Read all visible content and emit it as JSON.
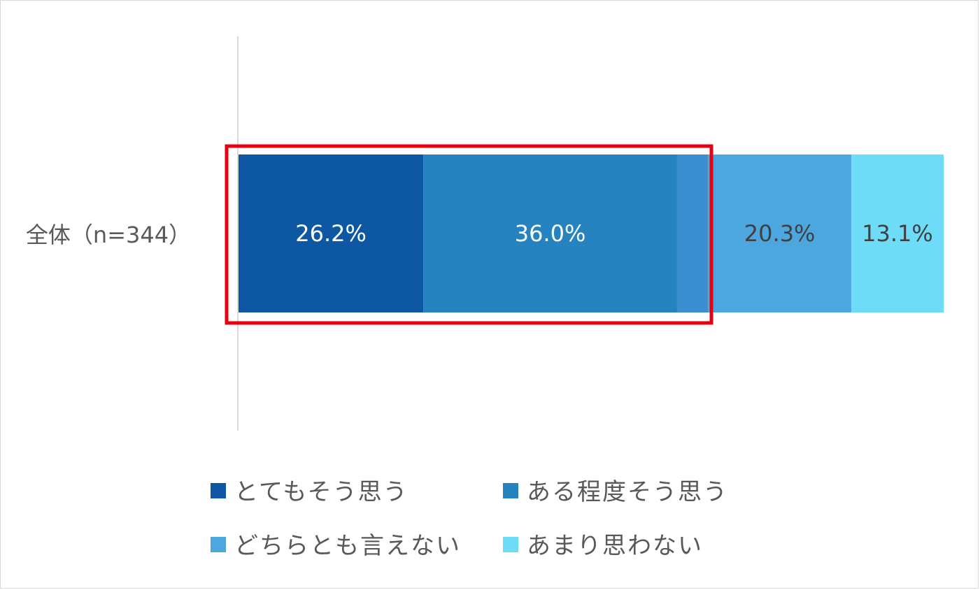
{
  "chart_data": {
    "type": "bar",
    "orientation": "horizontal",
    "stacked": true,
    "categories": [
      "全体（n=344）"
    ],
    "series": [
      {
        "name": "とてもそう思う",
        "values": [
          26.2
        ],
        "label": "26.2%",
        "color": "#0e57a3",
        "label_color": "#ffffff"
      },
      {
        "name": "ある程度そう思う",
        "values": [
          36.0
        ],
        "label": "36.0%",
        "color": "#2783c0",
        "label_color": "#ffffff"
      },
      {
        "name": "どちらとも言えない",
        "values": [
          20.3
        ],
        "label": "20.3%",
        "color": "#4da6dd",
        "label_color": "#404040"
      },
      {
        "name": "あまり思わない",
        "values": [
          13.1
        ],
        "label": "13.1%",
        "color": "#6edbf7",
        "label_color": "#404040"
      },
      {
        "name": "",
        "values": [
          4.4
        ],
        "label": "",
        "color": "#3b8fd0",
        "label_color": "#404040"
      }
    ],
    "xlim": [
      0,
      100
    ],
    "grid": false,
    "legend_position": "bottom",
    "highlight": {
      "series_span": [
        0,
        1
      ],
      "color": "#e60012"
    }
  }
}
